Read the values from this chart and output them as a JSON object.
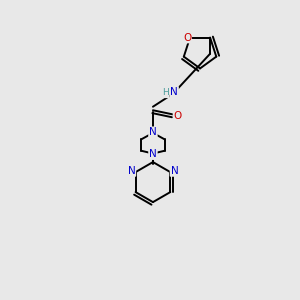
{
  "background_color": "#e8e8e8",
  "atom_colors": {
    "C": "#000000",
    "N": "#0000cc",
    "O": "#cc0000",
    "H": "#4a9a9a"
  },
  "figsize": [
    3.0,
    3.0
  ],
  "dpi": 100
}
